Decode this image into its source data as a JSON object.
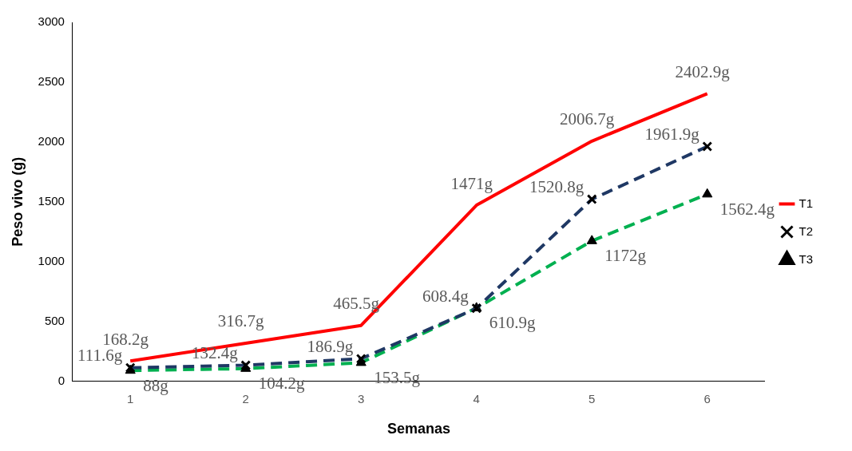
{
  "chart_data": {
    "type": "line",
    "xlabel": "Semanas",
    "ylabel": "Peso vivo (g)",
    "categories": [
      "1",
      "2",
      "3",
      "4",
      "5",
      "6"
    ],
    "ylim": [
      0,
      3000
    ],
    "yticks": [
      0,
      500,
      1000,
      1500,
      2000,
      2500,
      3000
    ],
    "grid": false,
    "legend": "right",
    "series": [
      {
        "name": "T1",
        "color": "#ff0000",
        "values": [
          168.2,
          316.7,
          465.5,
          1471,
          2006.7,
          2402.9
        ],
        "value_labels": [
          "168.2g",
          "316.7g",
          "465.5g",
          "1471g",
          "2006.7g",
          "2402.9g"
        ],
        "marker": "none",
        "line_style": "solid"
      },
      {
        "name": "T2",
        "color": "#1f3864",
        "values": [
          111.6,
          132.4,
          186.9,
          608.4,
          1520.8,
          1961.9
        ],
        "value_labels": [
          "111.6g",
          "132.4g",
          "186.9g",
          "608.4g",
          "1520.8g",
          "1961.9g"
        ],
        "marker": "cross",
        "line_style": "dashed"
      },
      {
        "name": "T3",
        "color": "#00b050",
        "values": [
          88,
          104.2,
          153.5,
          610.9,
          1172,
          1562.4
        ],
        "value_labels": [
          "88g",
          "104.2g",
          "153.5g",
          "610.9g",
          "1172g",
          "1562.4g"
        ],
        "marker": "triangle",
        "line_style": "dashed"
      }
    ]
  }
}
